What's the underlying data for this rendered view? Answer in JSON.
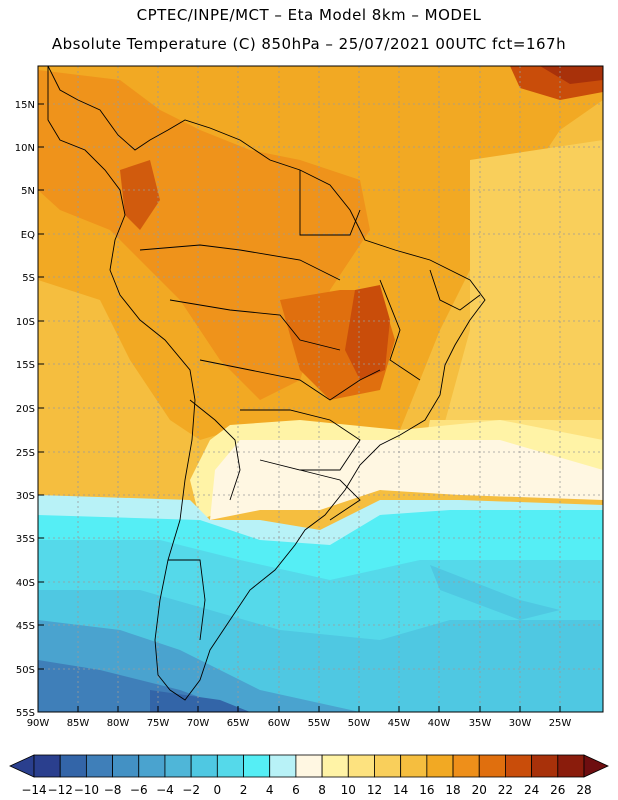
{
  "header": {
    "line1": "CPTEC/INPE/MCT –  Eta Model 8km – MODEL",
    "line2": "Absolute Temperature (C) 850hPa – 25/07/2021 00UTC fct=167h"
  },
  "map": {
    "lat_labels": [
      "15N",
      "10N",
      "5N",
      "EQ",
      "5S",
      "10S",
      "15S",
      "20S",
      "25S",
      "30S",
      "35S",
      "40S",
      "45S",
      "50S",
      "55S"
    ],
    "lon_labels": [
      "90W",
      "85W",
      "80W",
      "75W",
      "70W",
      "65W",
      "60W",
      "55W",
      "50W",
      "45W",
      "40W",
      "35W",
      "30W",
      "25W"
    ],
    "lat_range": [
      19,
      -55
    ],
    "lon_range": [
      -90,
      -20
    ]
  },
  "colorbar": {
    "labels": [
      "-14",
      "-12",
      "-10",
      "-8",
      "-6",
      "-4",
      "-2",
      "0",
      "2",
      "4",
      "6",
      "8",
      "10",
      "12",
      "14",
      "16",
      "18",
      "20",
      "22",
      "24",
      "26",
      "28"
    ],
    "colors": [
      "#2a3f8e",
      "#2a3f8e",
      "#3365a8",
      "#3f7fb9",
      "#4391c4",
      "#4aa3cf",
      "#4fb6d8",
      "#4fc8e2",
      "#55d9ea",
      "#55eef5",
      "#b8f2f7",
      "#fff7e2",
      "#fff3a6",
      "#fde27f",
      "#f9cf5b",
      "#f5be3f",
      "#f2a923",
      "#ee8f1a",
      "#e06f0e",
      "#c94d0a",
      "#a8310a",
      "#8a1c0c",
      "#6e0e10"
    ]
  }
}
